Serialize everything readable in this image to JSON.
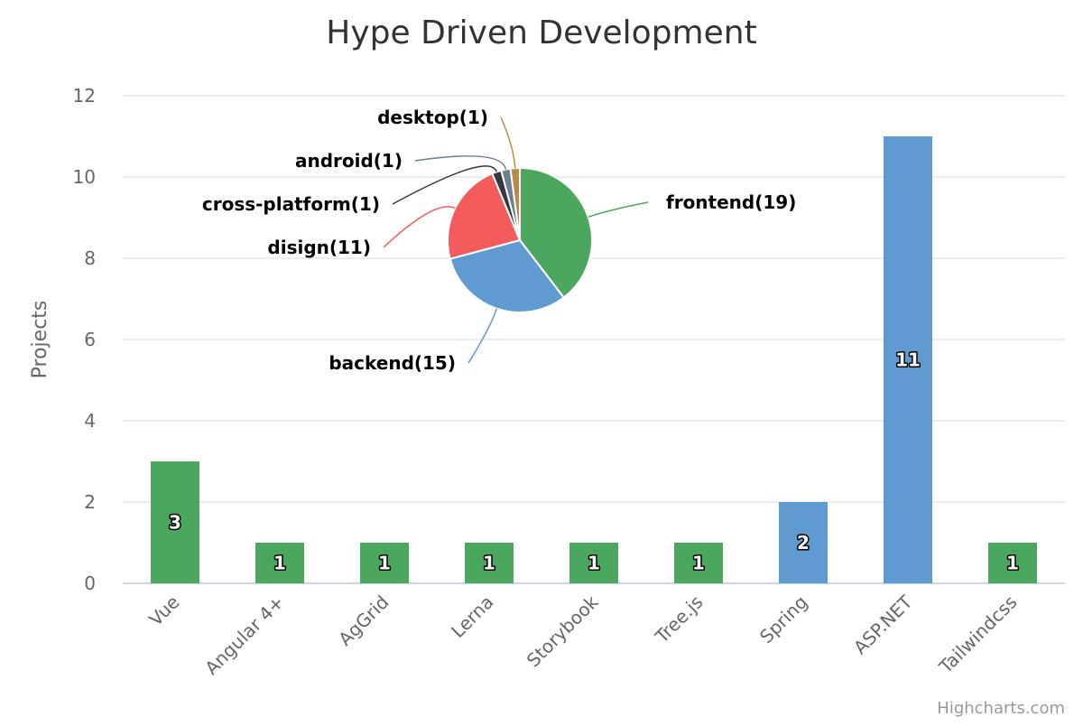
{
  "chart_data": [
    {
      "type": "bar",
      "title": "Hype Driven Development",
      "ylabel": "Projects",
      "ylim": [
        0,
        12
      ],
      "yticks": [
        0,
        2,
        4,
        6,
        8,
        10,
        12
      ],
      "grid": true,
      "categories": [
        "Vue",
        "Angular 4+",
        "AgGrid",
        "Lerna",
        "Storybook",
        "Tree.js",
        "Spring",
        "ASP.NET",
        "Tailwindcss"
      ],
      "values": [
        3,
        1,
        1,
        1,
        1,
        1,
        2,
        11,
        1
      ],
      "bar_colors": [
        "#4aa75d",
        "#4aa75d",
        "#4aa75d",
        "#4aa75d",
        "#4aa75d",
        "#4aa75d",
        "#5f9ad0",
        "#5f9ad0",
        "#4aa75d"
      ],
      "data_labels": [
        "3",
        "1",
        "1",
        "1",
        "1",
        "1",
        "2",
        "11",
        "1"
      ]
    },
    {
      "type": "pie",
      "slices": [
        {
          "name": "frontend",
          "value": 19,
          "label": "frontend(19)",
          "color": "#4aa75d"
        },
        {
          "name": "backend",
          "value": 15,
          "label": "backend(15)",
          "color": "#5f9ad0"
        },
        {
          "name": "disign",
          "value": 11,
          "label": "disign(11)",
          "color": "#f25c5c"
        },
        {
          "name": "cross-platform",
          "value": 1,
          "label": "cross-platform(1)",
          "color": "#34383f"
        },
        {
          "name": "android",
          "value": 1,
          "label": "android(1)",
          "color": "#6f7f93"
        },
        {
          "name": "desktop",
          "value": 1,
          "label": "desktop(1)",
          "color": "#b98b45"
        }
      ]
    }
  ],
  "credits": "Highcharts.com"
}
